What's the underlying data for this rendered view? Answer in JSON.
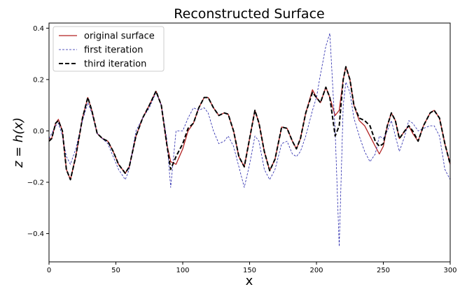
{
  "chart_data": {
    "type": "line",
    "title": "Reconstructed Surface",
    "x_label": "x",
    "y_label": "z = h(x)",
    "x": [
      0,
      2,
      5,
      7,
      10,
      13,
      16,
      20,
      25,
      29,
      32,
      36,
      40,
      44,
      48,
      52,
      57,
      60,
      65,
      70,
      75,
      80,
      84,
      88,
      91,
      95,
      100,
      104,
      108,
      112,
      116,
      119,
      123,
      127,
      131,
      134,
      138,
      142,
      146,
      150,
      154,
      157,
      161,
      165,
      169,
      174,
      178,
      182,
      185,
      188,
      192,
      197,
      200,
      203,
      207,
      210,
      214,
      217,
      220,
      222,
      225,
      228,
      232,
      236,
      240,
      244,
      247,
      250,
      253,
      256,
      259,
      262,
      266,
      269,
      272,
      276,
      280,
      285,
      288,
      292,
      296,
      300
    ],
    "series": [
      {
        "name": "original surface",
        "color": "#b22222",
        "dash": "none",
        "width": 1.3,
        "values": [
          -0.03,
          -0.03,
          0.03,
          0.045,
          0.0,
          -0.15,
          -0.19,
          -0.1,
          0.05,
          0.13,
          0.08,
          -0.01,
          -0.03,
          -0.04,
          -0.08,
          -0.13,
          -0.165,
          -0.14,
          -0.02,
          0.05,
          0.1,
          0.155,
          0.1,
          -0.05,
          -0.12,
          -0.13,
          -0.07,
          0.0,
          0.03,
          0.09,
          0.13,
          0.13,
          0.09,
          0.06,
          0.07,
          0.065,
          0.0,
          -0.1,
          -0.14,
          -0.03,
          0.08,
          0.03,
          -0.08,
          -0.155,
          -0.11,
          0.015,
          0.01,
          -0.04,
          -0.07,
          -0.03,
          0.07,
          0.16,
          0.13,
          0.11,
          0.17,
          0.13,
          0.06,
          0.08,
          0.2,
          0.25,
          0.2,
          0.1,
          0.04,
          0.02,
          -0.02,
          -0.06,
          -0.09,
          -0.06,
          0.02,
          0.07,
          0.04,
          -0.03,
          0.0,
          0.02,
          -0.01,
          -0.04,
          0.02,
          0.07,
          0.08,
          0.05,
          -0.05,
          -0.13
        ]
      },
      {
        "name": "first iteration",
        "color": "#2222aa",
        "dash": "3,2",
        "width": 0.8,
        "values": [
          -0.03,
          -0.01,
          0.02,
          0.03,
          -0.02,
          -0.1,
          -0.13,
          -0.07,
          0.04,
          0.11,
          0.07,
          -0.01,
          -0.03,
          -0.05,
          -0.1,
          -0.15,
          -0.19,
          -0.15,
          0.0,
          0.05,
          0.09,
          0.15,
          0.1,
          -0.03,
          -0.22,
          0.0,
          0.0,
          0.05,
          0.09,
          0.08,
          0.09,
          0.07,
          0.0,
          -0.05,
          -0.04,
          -0.02,
          -0.06,
          -0.14,
          -0.22,
          -0.13,
          -0.02,
          -0.04,
          -0.15,
          -0.19,
          -0.15,
          -0.05,
          -0.04,
          -0.09,
          -0.1,
          -0.08,
          -0.02,
          0.08,
          0.13,
          0.22,
          0.33,
          0.38,
          0.0,
          -0.45,
          0.1,
          0.19,
          0.15,
          0.05,
          -0.02,
          -0.08,
          -0.12,
          -0.09,
          -0.02,
          -0.03,
          0.0,
          0.04,
          -0.02,
          -0.08,
          -0.02,
          0.04,
          0.03,
          0.0,
          0.01,
          0.02,
          0.02,
          -0.02,
          -0.15,
          -0.19
        ]
      },
      {
        "name": "third iteration",
        "color": "#000000",
        "dash": "6,3",
        "width": 2,
        "values": [
          -0.04,
          -0.03,
          0.03,
          0.04,
          0.0,
          -0.15,
          -0.19,
          -0.1,
          0.05,
          0.13,
          0.08,
          -0.01,
          -0.03,
          -0.04,
          -0.08,
          -0.13,
          -0.165,
          -0.14,
          -0.02,
          0.05,
          0.1,
          0.155,
          0.1,
          -0.05,
          -0.15,
          -0.1,
          -0.05,
          0.01,
          0.03,
          0.09,
          0.13,
          0.13,
          0.09,
          0.06,
          0.07,
          0.065,
          0.0,
          -0.1,
          -0.14,
          -0.03,
          0.08,
          0.03,
          -0.08,
          -0.155,
          -0.11,
          0.015,
          0.01,
          -0.04,
          -0.07,
          -0.03,
          0.07,
          0.15,
          0.13,
          0.11,
          0.17,
          0.13,
          -0.02,
          0.02,
          0.2,
          0.25,
          0.2,
          0.1,
          0.05,
          0.04,
          0.02,
          -0.04,
          -0.06,
          -0.05,
          0.02,
          0.07,
          0.04,
          -0.03,
          0.0,
          0.02,
          0.0,
          -0.04,
          0.02,
          0.07,
          0.08,
          0.05,
          -0.05,
          -0.13
        ]
      }
    ],
    "xlim": [
      0,
      300
    ],
    "ylim": [
      -0.51,
      0.42
    ],
    "xticks": [
      0,
      50,
      100,
      150,
      200,
      250,
      300
    ],
    "yticks": [
      {
        "value": -0.4,
        "label": "−0.4"
      },
      {
        "value": -0.2,
        "label": "−0.2"
      },
      {
        "value": 0,
        "label": "0.0"
      },
      0.2,
      0.4
    ],
    "legend": "upper left"
  }
}
